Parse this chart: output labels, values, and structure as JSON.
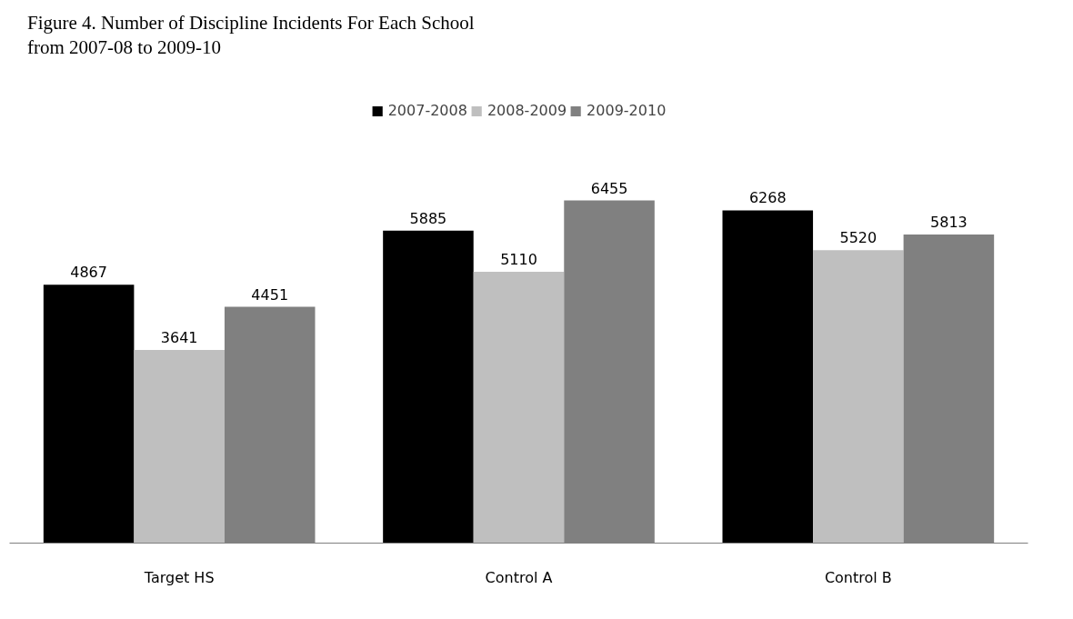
{
  "chart_data": {
    "type": "bar",
    "title": "Figure 4.   Number of Discipline Incidents For Each School from 2007-08 to 2009-10",
    "categories": [
      "Target HS",
      "Control A",
      "Control B"
    ],
    "series": [
      {
        "name": "2007-2008",
        "color": "#000000",
        "values": [
          4867,
          5885,
          6268
        ]
      },
      {
        "name": "2008-2009",
        "color": "#bfbfbf",
        "values": [
          3641,
          5110,
          5520
        ]
      },
      {
        "name": "2009-2010",
        "color": "#808080",
        "values": [
          4451,
          6455,
          5813
        ]
      }
    ],
    "data_labels": true,
    "grid": false,
    "legend": "top",
    "tick_labels": "x"
  }
}
